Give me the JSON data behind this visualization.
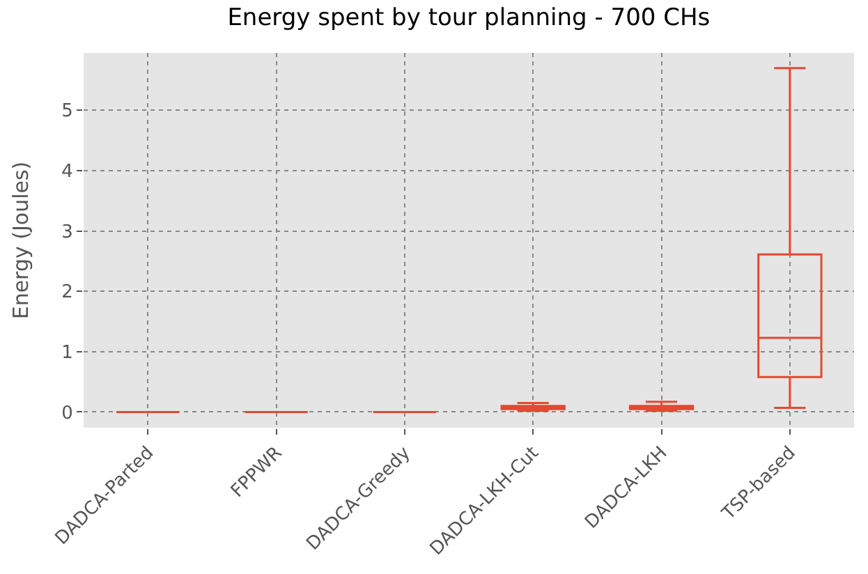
{
  "chart_data": {
    "type": "box",
    "title": "Energy spent by tour planning - 700 CHs",
    "ylabel": "Energy (Joules)",
    "categories": [
      "DADCA-Parted",
      "FPPWR",
      "DADCA-Greedy",
      "DADCA-LKH-Cut",
      "DADCA-LKH",
      "TSP-based"
    ],
    "boxes": [
      {
        "low": 0,
        "q1": 0,
        "median": 0,
        "q3": 0,
        "high": 0
      },
      {
        "low": 0,
        "q1": 0,
        "median": 0,
        "q3": 0,
        "high": 0
      },
      {
        "low": 0,
        "q1": 0,
        "median": 0,
        "q3": 0,
        "high": 0
      },
      {
        "low": 0.02,
        "q1": 0.05,
        "median": 0.08,
        "q3": 0.1,
        "high": 0.15
      },
      {
        "low": 0.02,
        "q1": 0.05,
        "median": 0.08,
        "q3": 0.1,
        "high": 0.17
      },
      {
        "low": 0.07,
        "q1": 0.58,
        "median": 1.23,
        "q3": 2.61,
        "high": 5.7
      }
    ],
    "color": "#e24a33",
    "ylim": [
      -0.26,
      5.95
    ],
    "yticks": [
      0,
      1,
      2,
      3,
      4,
      5
    ],
    "grid": true
  }
}
